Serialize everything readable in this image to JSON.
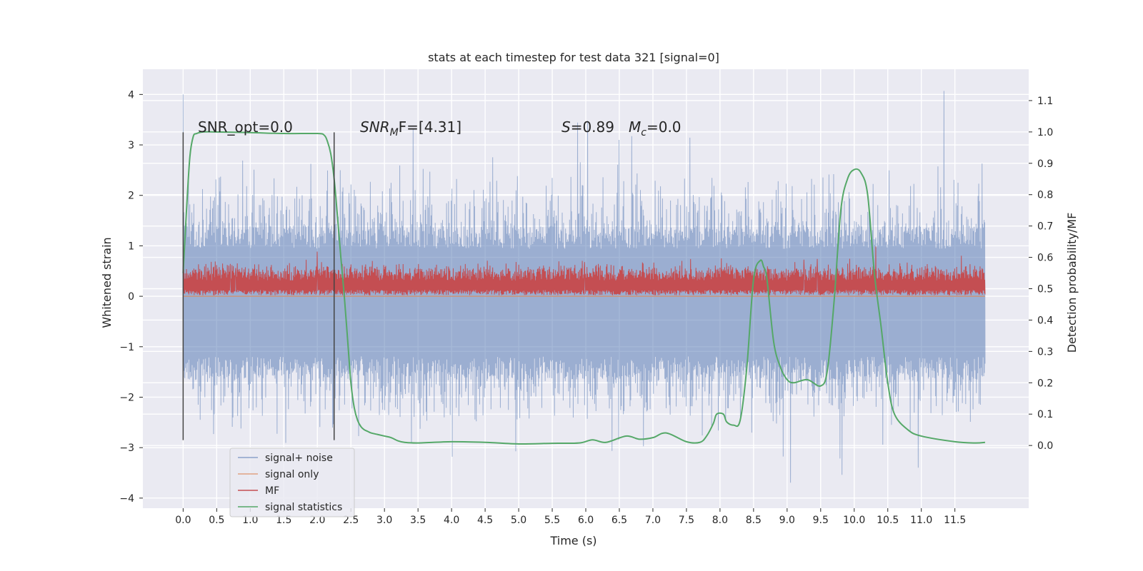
{
  "chart_data": {
    "type": "line",
    "title": "stats at each timestep for test data 321 [signal=0]",
    "xlabel": "Time (s)",
    "ylabel": "Whitened strain",
    "ylabel_right": "Detection probability/MF",
    "xlim": [
      -0.6,
      12.6
    ],
    "ylim": [
      -4.2,
      4.5
    ],
    "ylim_right": [
      -0.2,
      1.2
    ],
    "grid": true,
    "legend_position": "lower-left",
    "x_ticks": [
      0.0,
      0.5,
      1.0,
      1.5,
      2.0,
      2.5,
      3.0,
      3.5,
      4.0,
      4.5,
      5.0,
      5.5,
      6.0,
      6.5,
      7.0,
      7.5,
      8.0,
      8.5,
      9.0,
      9.5,
      10.0,
      10.5,
      11.0,
      11.5
    ],
    "x_tick_labels": [
      "0.0",
      "0.5",
      "1.0",
      "1.5",
      "2.0",
      "2.5",
      "3.0",
      "3.5",
      "4.0",
      "4.5",
      "5.0",
      "5.5",
      "6.0",
      "6.5",
      "7.0",
      "7.5",
      "8.0",
      "8.5",
      "9.0",
      "9.5",
      "10.0",
      "10.5",
      "11.0",
      "11.5"
    ],
    "y_ticks": [
      -4,
      -3,
      -2,
      -1,
      0,
      1,
      2,
      3,
      4
    ],
    "y_tick_labels": [
      "−4",
      "−3",
      "−2",
      "−1",
      "0",
      "1",
      "2",
      "3",
      "4"
    ],
    "y_ticks_right": [
      0.0,
      0.1,
      0.2,
      0.3,
      0.4,
      0.5,
      0.6,
      0.7,
      0.8,
      0.9,
      1.0,
      1.1
    ],
    "y_tick_labels_right": [
      "0.0",
      "0.1",
      "0.2",
      "0.3",
      "0.4",
      "0.5",
      "0.6",
      "0.7",
      "0.8",
      "0.9",
      "1.0",
      "1.1"
    ],
    "annotations": {
      "snr_opt": "SNR_opt=0.0",
      "snr_mf_prefix": "SNR",
      "snr_mf_sub": "M",
      "snr_mf_suffix": "F=[4.31]",
      "s_symbol": "S",
      "s_value": "=0.89",
      "mc_symbol": "M",
      "mc_sub": "c",
      "mc_value": "=0.0"
    },
    "window_markers": [
      {
        "x": 0.0,
        "y_range": [
          -2.85,
          3.25
        ]
      },
      {
        "x": 2.25,
        "y_range": [
          -2.85,
          3.25
        ]
      }
    ],
    "series": [
      {
        "name": "signal+ noise",
        "color": "#4c72b0",
        "axis": "left",
        "x_range": [
          0.0,
          11.95
        ],
        "envelope_upper": 1.4,
        "envelope_lower": -1.65,
        "peak_max": 4.1,
        "peak_min": -3.7
      },
      {
        "name": "signal only",
        "color": "#dd8452",
        "axis": "left",
        "x": [
          0.0,
          11.95
        ],
        "y": [
          0.0,
          0.0
        ]
      },
      {
        "name": "MF",
        "color": "#c44e52",
        "axis": "left",
        "x_range": [
          0.0,
          11.95
        ],
        "band_upper": 0.55,
        "band_lower": 0.02,
        "peak_max": 1.0
      },
      {
        "name": "signal statistics",
        "color": "#55a868",
        "axis": "right",
        "x": [
          0.0,
          0.05,
          0.1,
          0.15,
          0.2,
          0.3,
          0.5,
          1.0,
          1.5,
          2.0,
          2.1,
          2.15,
          2.2,
          2.25,
          2.3,
          2.35,
          2.4,
          2.45,
          2.5,
          2.55,
          2.6,
          2.65,
          2.7,
          2.75,
          2.8,
          2.9,
          3.0,
          3.1,
          3.2,
          3.3,
          3.5,
          4.0,
          4.5,
          5.0,
          5.5,
          5.9,
          6.1,
          6.3,
          6.6,
          6.8,
          7.0,
          7.2,
          7.5,
          7.7,
          7.8,
          7.9,
          7.95,
          8.05,
          8.1,
          8.2,
          8.3,
          8.4,
          8.5,
          8.6,
          8.65,
          8.7,
          8.8,
          8.9,
          9.0,
          9.1,
          9.3,
          9.5,
          9.6,
          9.7,
          9.8,
          9.9,
          10.0,
          10.1,
          10.2,
          10.3,
          10.4,
          10.5,
          10.6,
          10.8,
          11.0,
          11.5,
          11.8,
          11.95
        ],
        "y": [
          0.55,
          0.75,
          0.92,
          0.985,
          0.995,
          1.0,
          1.0,
          0.998,
          0.995,
          0.995,
          0.99,
          0.97,
          0.93,
          0.85,
          0.73,
          0.6,
          0.48,
          0.34,
          0.2,
          0.12,
          0.08,
          0.06,
          0.05,
          0.045,
          0.04,
          0.035,
          0.03,
          0.025,
          0.015,
          0.01,
          0.008,
          0.012,
          0.01,
          0.005,
          0.007,
          0.008,
          0.018,
          0.01,
          0.03,
          0.02,
          0.025,
          0.04,
          0.012,
          0.01,
          0.03,
          0.07,
          0.1,
          0.1,
          0.075,
          0.065,
          0.08,
          0.25,
          0.53,
          0.59,
          0.57,
          0.53,
          0.33,
          0.25,
          0.21,
          0.2,
          0.21,
          0.19,
          0.24,
          0.46,
          0.75,
          0.85,
          0.88,
          0.87,
          0.8,
          0.55,
          0.38,
          0.2,
          0.1,
          0.05,
          0.03,
          0.012,
          0.008,
          0.01
        ]
      }
    ]
  }
}
